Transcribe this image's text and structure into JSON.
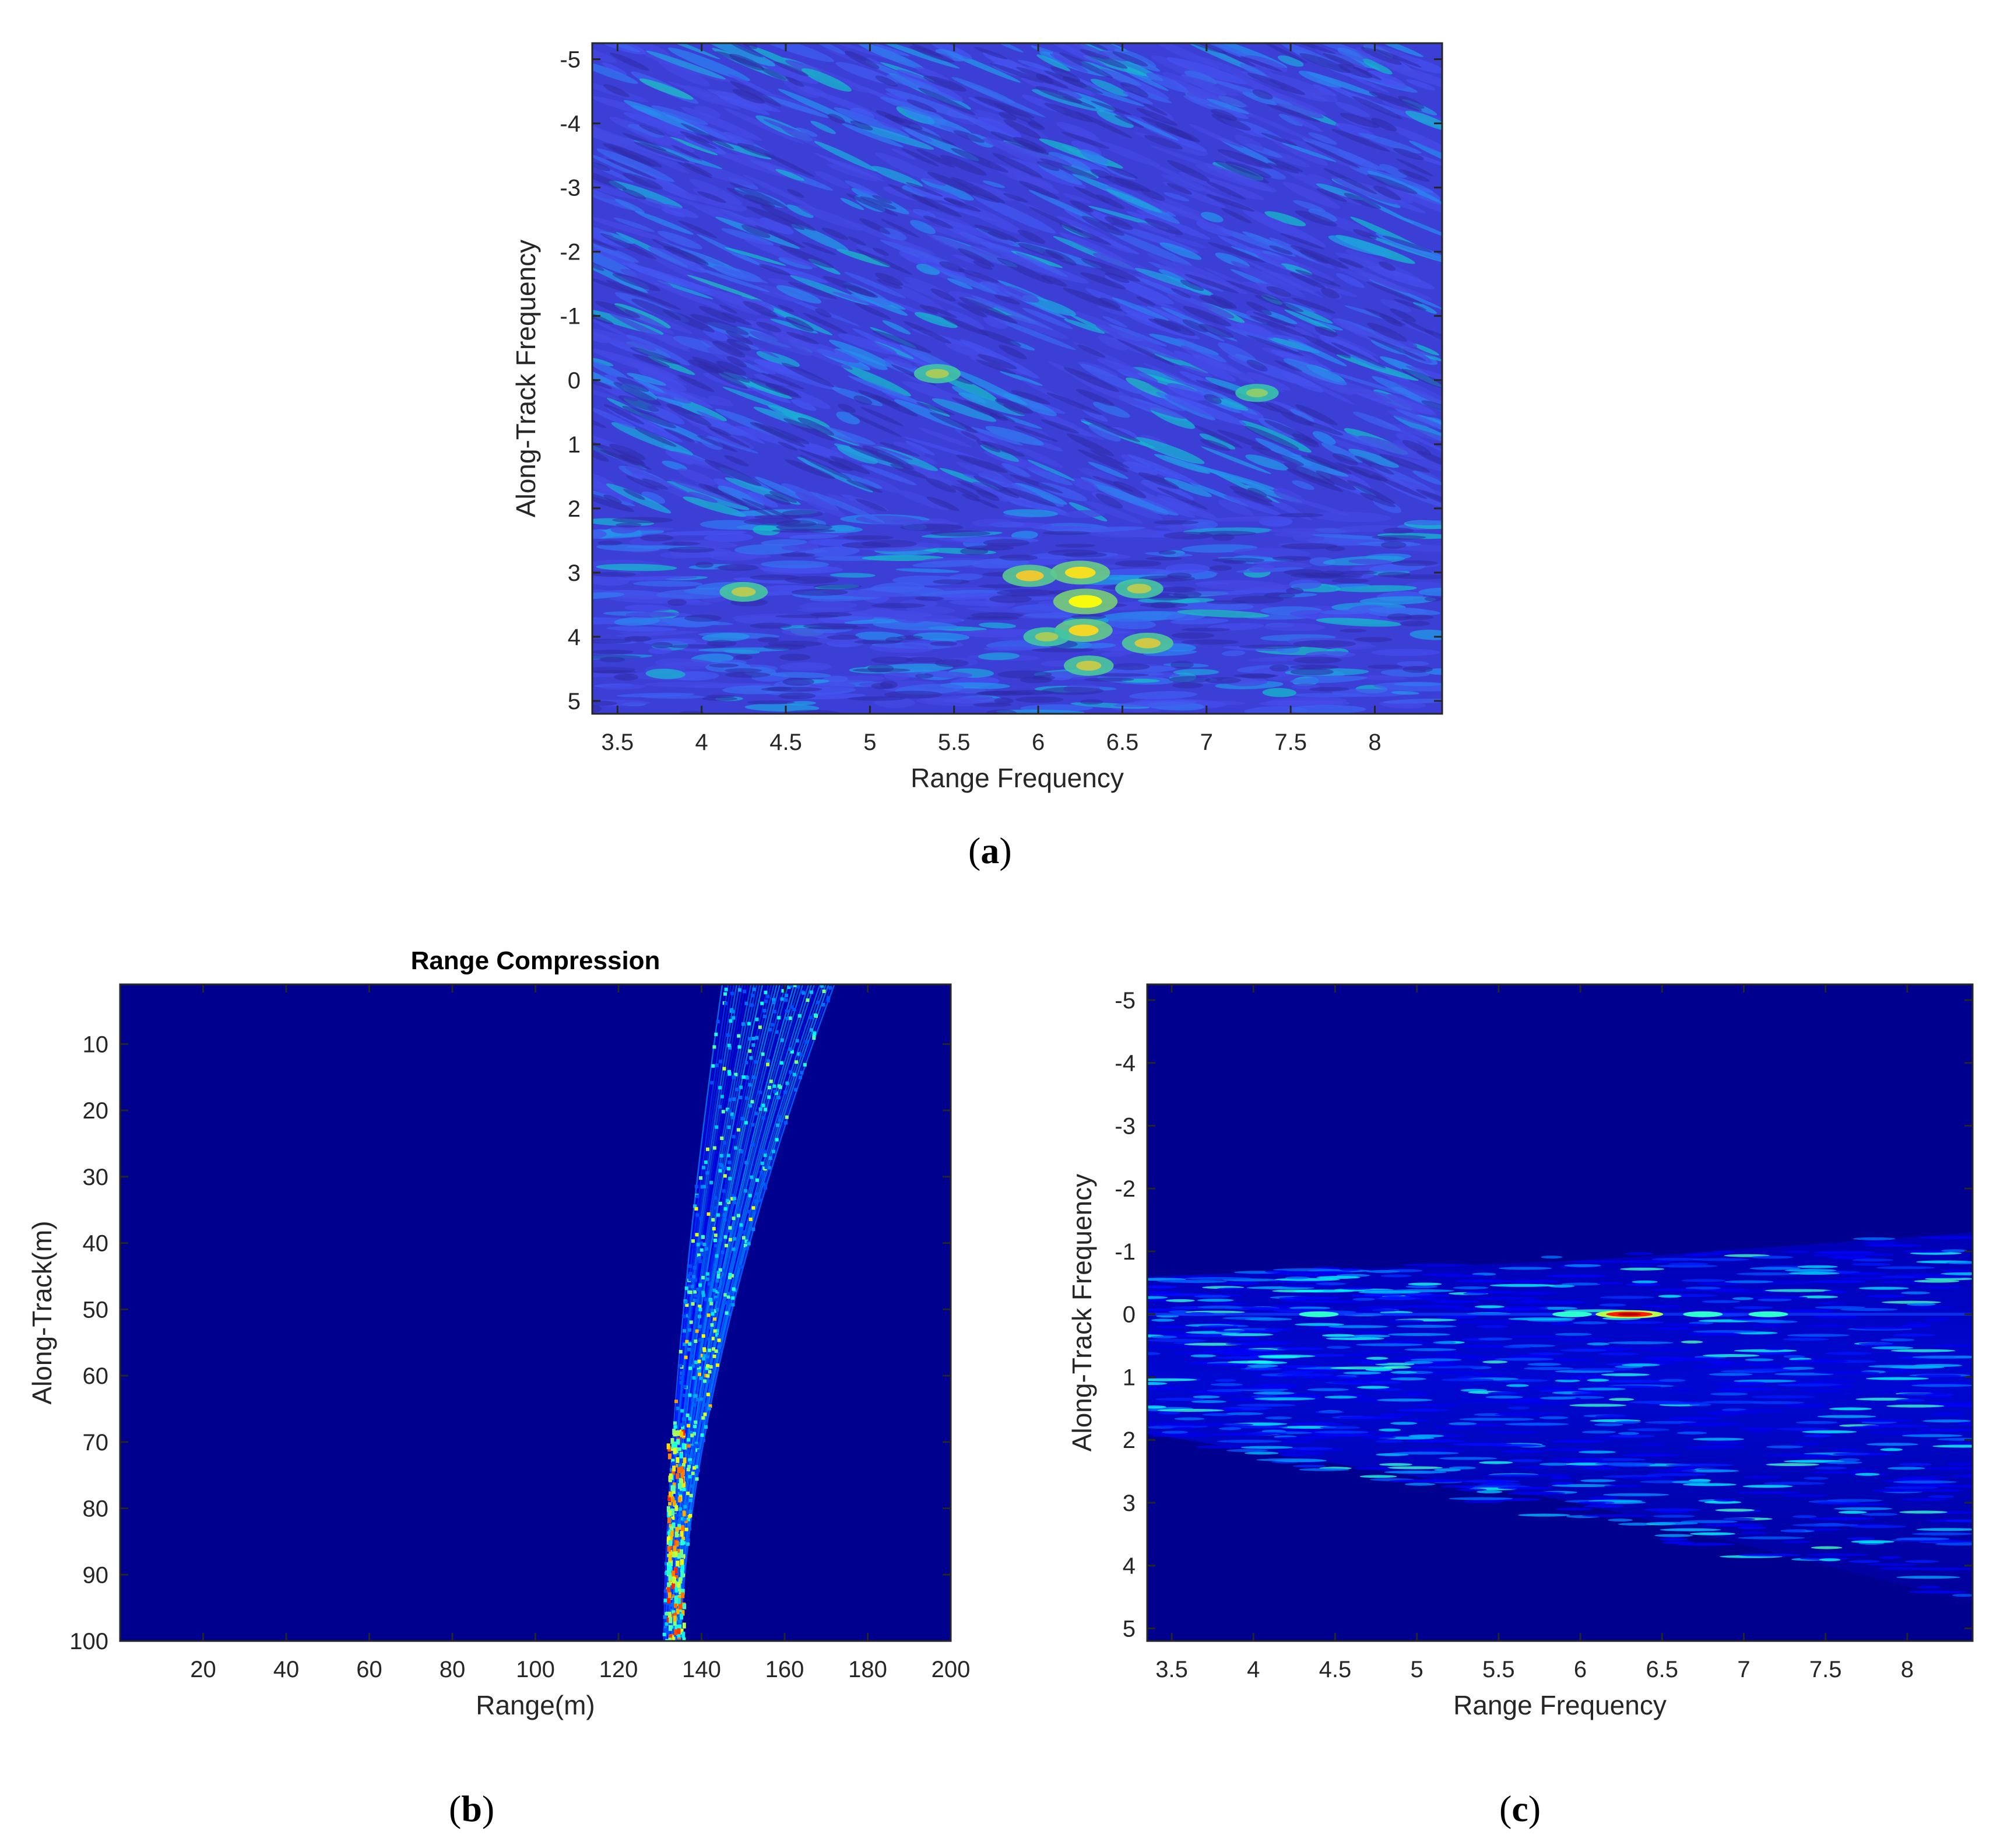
{
  "chart_data": [
    {
      "type": "heatmap",
      "panel_label": "a",
      "title": "",
      "xlabel": "Range Frequency",
      "ylabel": "Along-Track Frequency",
      "xlim": [
        3.35,
        8.4
      ],
      "ylim": [
        -5.25,
        5.2
      ],
      "y_reversed": true,
      "xticks": [
        "3.5",
        "4",
        "4.5",
        "5",
        "5.5",
        "6",
        "6.5",
        "7",
        "7.5",
        "8"
      ],
      "yticks": [
        "-5",
        "-4",
        "-3",
        "-2",
        "-1",
        "0",
        "1",
        "2",
        "3",
        "4",
        "5"
      ],
      "colormap": "parula",
      "background": "#3b3fd6",
      "hotspots": [
        {
          "x": 6.28,
          "y": 3.45,
          "level": 1.0
        },
        {
          "x": 6.25,
          "y": 3.0,
          "level": 0.85
        },
        {
          "x": 6.27,
          "y": 3.9,
          "level": 0.8
        },
        {
          "x": 6.3,
          "y": 4.45,
          "level": 0.55
        },
        {
          "x": 5.95,
          "y": 3.05,
          "level": 0.7
        },
        {
          "x": 6.65,
          "y": 4.1,
          "level": 0.6
        },
        {
          "x": 6.6,
          "y": 3.25,
          "level": 0.5
        },
        {
          "x": 4.25,
          "y": 3.3,
          "level": 0.5
        },
        {
          "x": 5.4,
          "y": -0.1,
          "level": 0.45
        },
        {
          "x": 7.3,
          "y": 0.2,
          "level": 0.35
        },
        {
          "x": 6.05,
          "y": 4.0,
          "level": 0.45
        }
      ]
    },
    {
      "type": "heatmap",
      "panel_label": "b",
      "title": "Range Compression",
      "xlabel": "Range(m)",
      "ylabel": "Along-Track(m)",
      "xlim": [
        0,
        200
      ],
      "ylim": [
        1,
        100
      ],
      "y_reversed": true,
      "xticks": [
        "20",
        "40",
        "60",
        "80",
        "100",
        "120",
        "140",
        "160",
        "180",
        "200"
      ],
      "yticks": [
        "10",
        "20",
        "30",
        "40",
        "50",
        "60",
        "70",
        "80",
        "90",
        "100"
      ],
      "colormap": "jet",
      "background": "#00008f",
      "curve": {
        "range_at_top": [
          145,
          172
        ],
        "range_at_bottom": [
          131,
          135
        ],
        "bright_track_range": 134
      }
    },
    {
      "type": "heatmap",
      "panel_label": "c",
      "title": "",
      "xlabel": "Range Frequency",
      "ylabel": "Along-Track Frequency",
      "xlim": [
        3.35,
        8.4
      ],
      "ylim": [
        -5.25,
        5.2
      ],
      "y_reversed": true,
      "xticks": [
        "3.5",
        "4",
        "4.5",
        "5",
        "5.5",
        "6",
        "6.5",
        "7",
        "7.5",
        "8"
      ],
      "yticks": [
        "-5",
        "-4",
        "-3",
        "-2",
        "-1",
        "0",
        "1",
        "2",
        "3",
        "4",
        "5"
      ],
      "colormap": "jet",
      "background": "#00008f",
      "peak": {
        "x": 6.3,
        "y": 0.0
      },
      "secondary_peaks": [
        {
          "x": 6.75,
          "y": 0.0
        },
        {
          "x": 5.95,
          "y": 0.0
        },
        {
          "x": 7.15,
          "y": 0.0
        },
        {
          "x": 4.4,
          "y": 0.0
        }
      ]
    }
  ]
}
